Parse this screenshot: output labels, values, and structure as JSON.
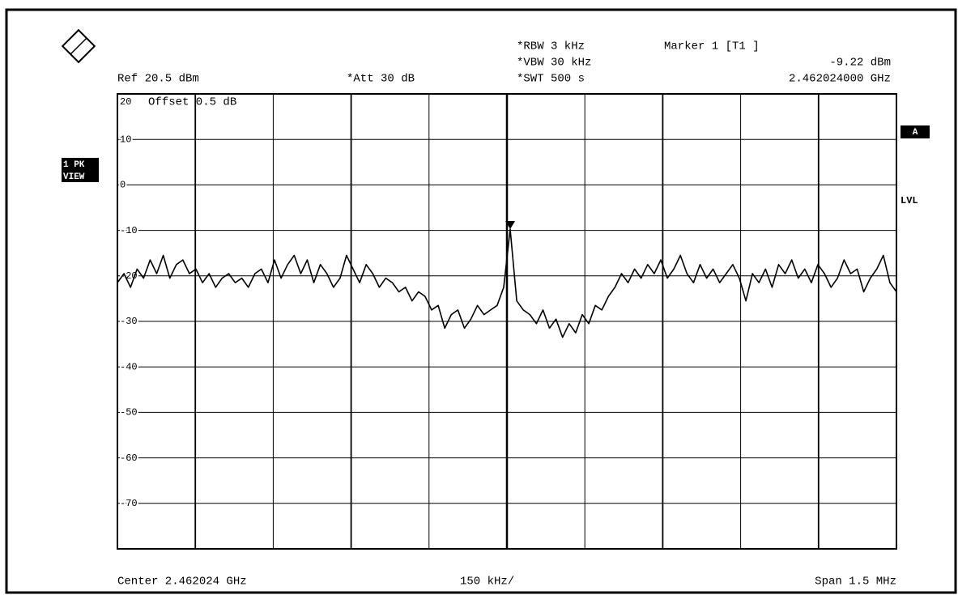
{
  "chart_data": {
    "type": "line",
    "ref_level": "Ref 20.5 dBm",
    "attenuation": "*Att 30 dB",
    "rbw": "*RBW 3 kHz",
    "vbw": "*VBW 30 kHz",
    "swt": "*SWT 500 s",
    "marker": {
      "label": "Marker 1 [T1 ]",
      "level": "-9.22 dBm",
      "frequency": "2.462024000 GHz"
    },
    "offset": "Offset 0.5 dB",
    "trace_label": [
      "1 PK",
      "VIEW"
    ],
    "side_labels": [
      "A",
      "LVL"
    ],
    "center": "Center 2.462024 GHz",
    "per_division": "150 kHz/",
    "span": "Span 1.5 MHz",
    "color": "#000000",
    "grid": true,
    "ylim": [
      -79.5,
      20.5
    ],
    "yticks": [
      {
        "value": 20.5,
        "label": "20"
      },
      {
        "value": 10.5,
        "label": "10"
      },
      {
        "value": 0.5,
        "label": "0"
      },
      {
        "value": -9.5,
        "label": "-10"
      },
      {
        "value": -19.5,
        "label": "-20"
      },
      {
        "value": -29.5,
        "label": "-30"
      },
      {
        "value": -39.5,
        "label": "-40"
      },
      {
        "value": -49.5,
        "label": "-50"
      },
      {
        "value": -59.5,
        "label": "-60"
      },
      {
        "value": -69.5,
        "label": "-70"
      }
    ],
    "values": [
      -21,
      -19,
      -22,
      -18,
      -20,
      -16,
      -19,
      -15,
      -20,
      -17,
      -16,
      -19,
      -18,
      -21,
      -19,
      -22,
      -20,
      -19,
      -21,
      -20,
      -22,
      -19,
      -18,
      -21,
      -16,
      -20,
      -17,
      -15,
      -19,
      -16,
      -21,
      -17,
      -19,
      -22,
      -20,
      -15,
      -18,
      -21,
      -17,
      -19,
      -22,
      -20,
      -21,
      -23,
      -22,
      -25,
      -23,
      -24,
      -27,
      -26,
      -31,
      -28,
      -27,
      -31,
      -29,
      -26,
      -28,
      -27,
      -26,
      -22,
      -9.22,
      -25,
      -27,
      -28,
      -30,
      -27,
      -31,
      -29,
      -33,
      -30,
      -32,
      -28,
      -30,
      -26,
      -27,
      -24,
      -22,
      -19,
      -21,
      -18,
      -20,
      -17,
      -19,
      -16,
      -20,
      -18,
      -15,
      -19,
      -21,
      -17,
      -20,
      -18,
      -21,
      -19,
      -17,
      -20,
      -25,
      -19,
      -21,
      -18,
      -22,
      -17,
      -19,
      -16,
      -20,
      -18,
      -21,
      -17,
      -19,
      -22,
      -20,
      -16,
      -19,
      -18,
      -23,
      -20,
      -18,
      -15,
      -21,
      -23
    ]
  }
}
